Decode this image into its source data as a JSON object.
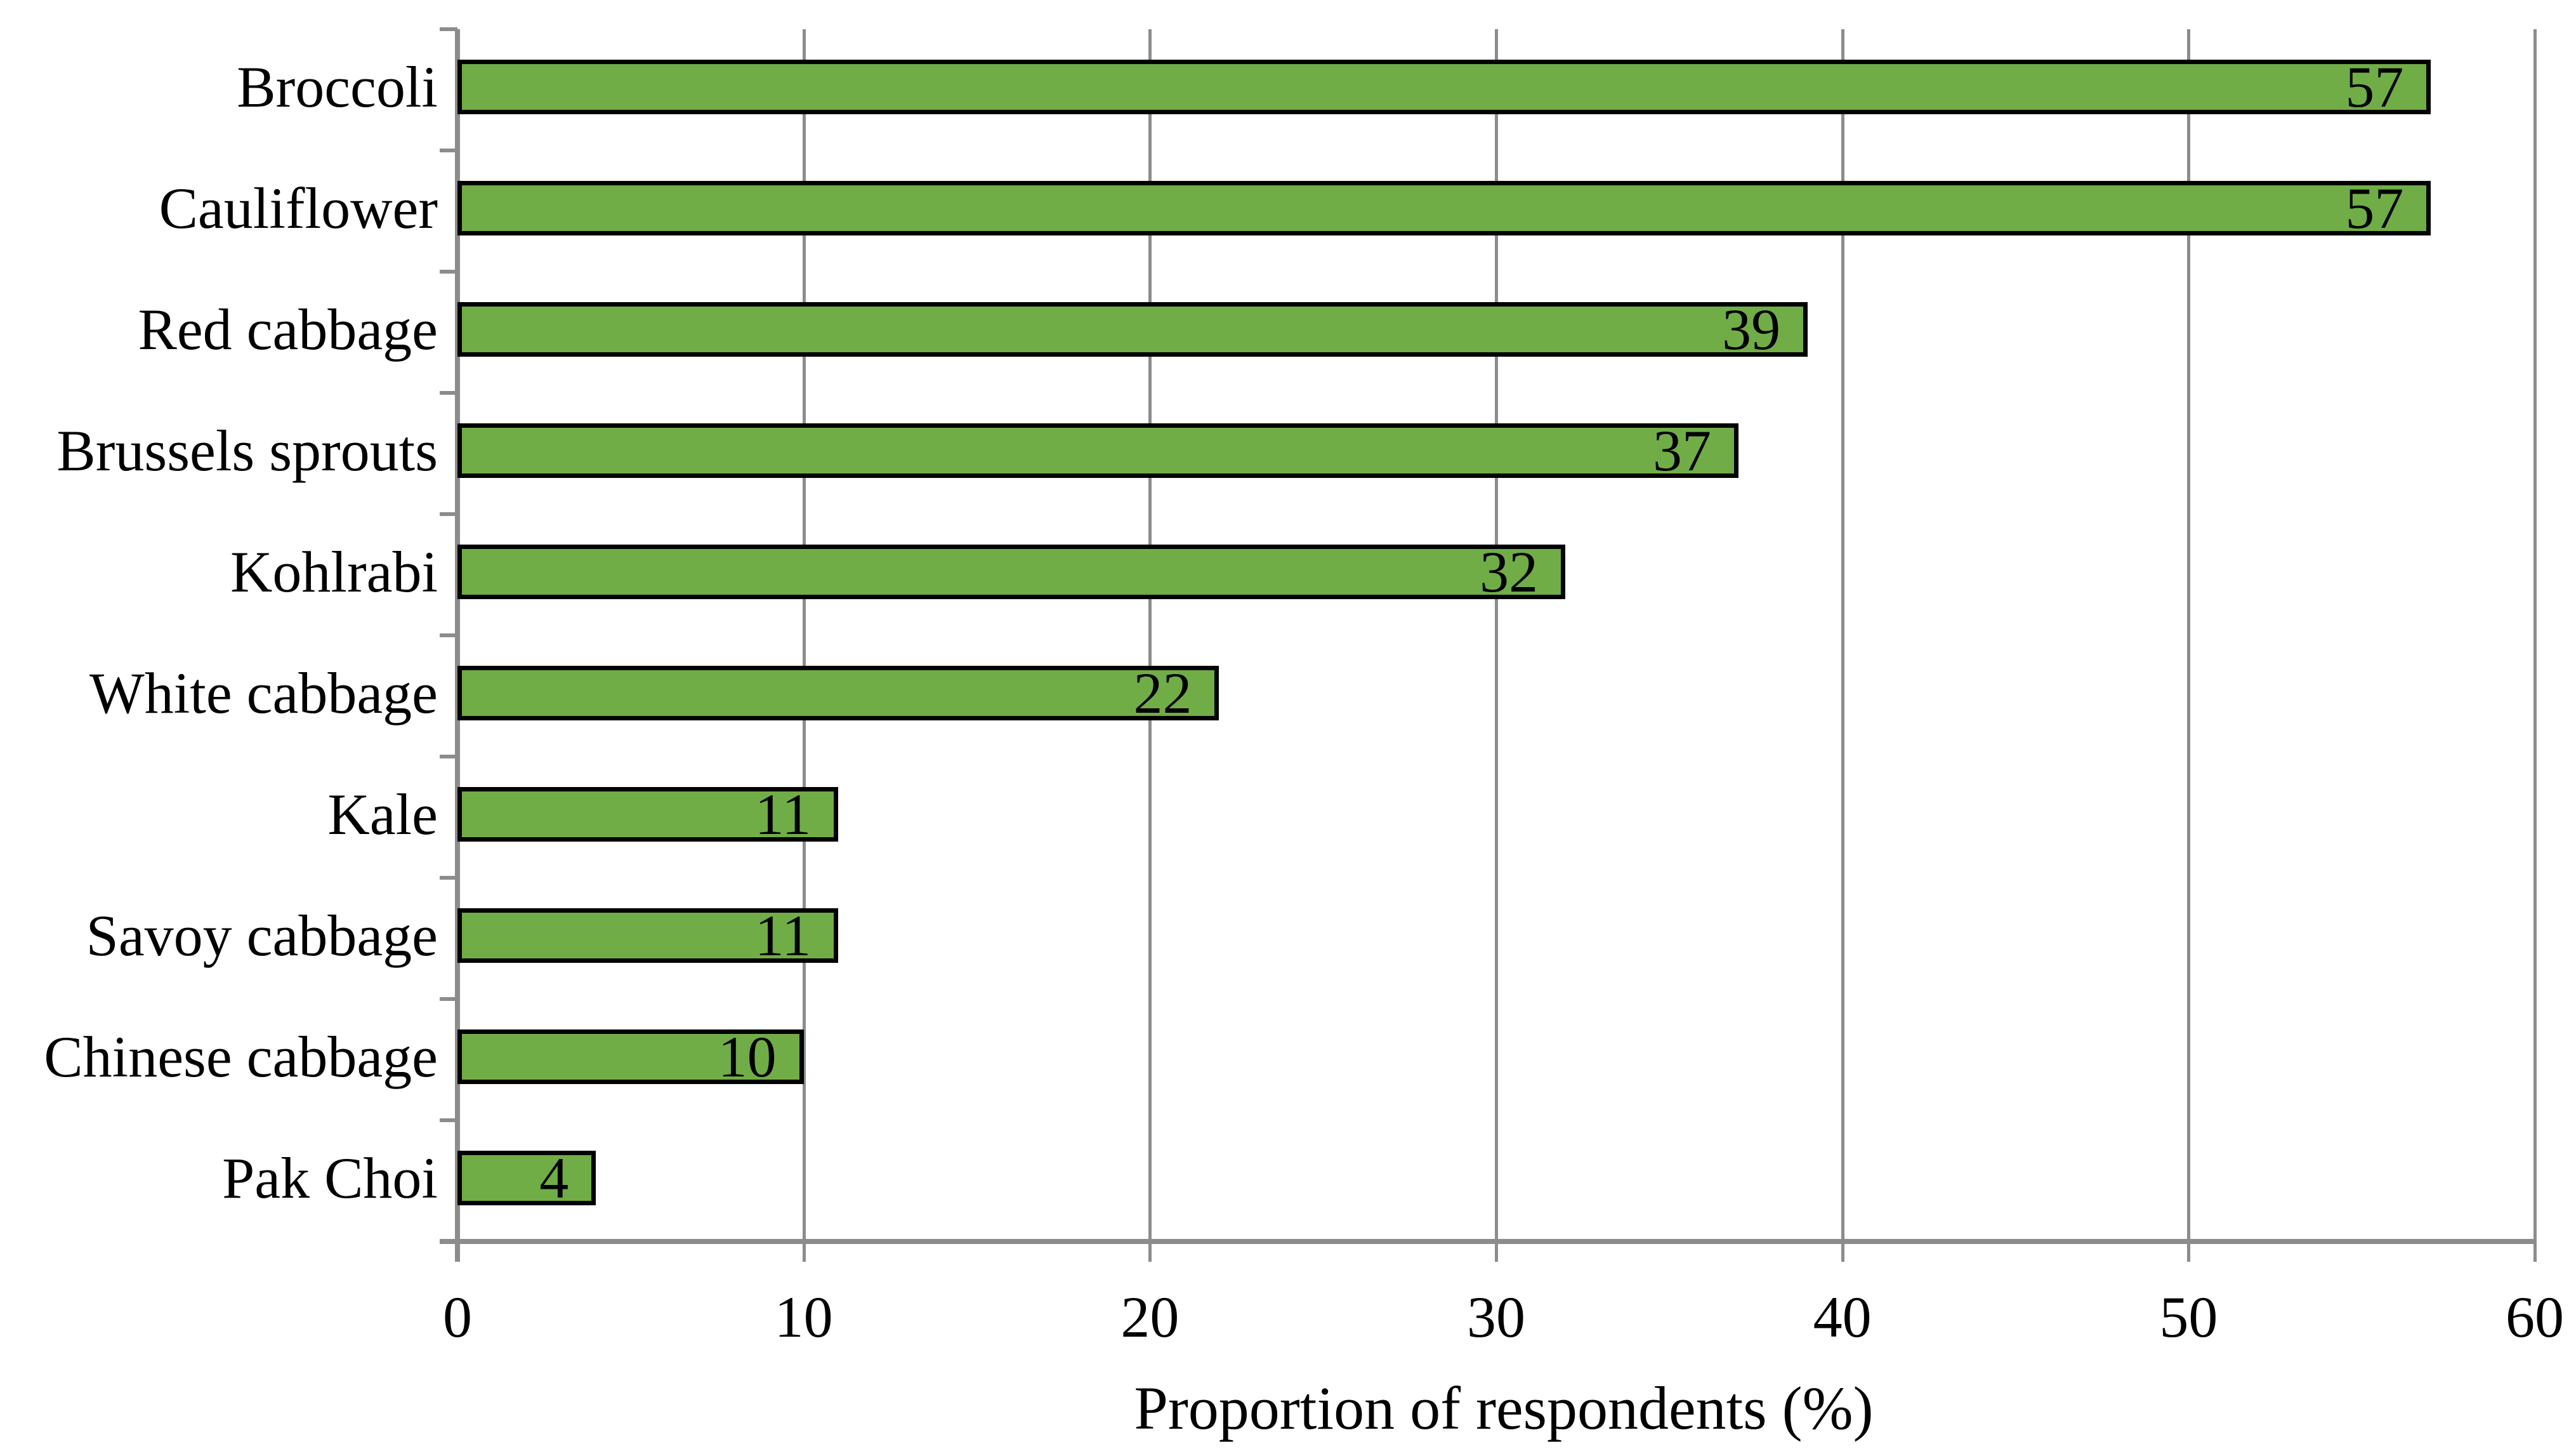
{
  "chart_data": {
    "type": "bar",
    "orientation": "horizontal",
    "categories": [
      "Broccoli",
      "Cauliflower",
      "Red cabbage",
      "Brussels sprouts",
      "Kohlrabi",
      "White cabbage",
      "Kale",
      "Savoy cabbage",
      "Chinese cabbage",
      "Pak Choi"
    ],
    "values": [
      57,
      57,
      39,
      37,
      32,
      22,
      11,
      11,
      10,
      4
    ],
    "title": "",
    "xlabel": "Proportion of respondents (%)",
    "ylabel": "",
    "xlim": [
      0,
      60
    ],
    "xticks": [
      0,
      10,
      20,
      30,
      40,
      50,
      60
    ],
    "grid": true,
    "legend": "none",
    "data_labels_position": "inside-end",
    "colors": {
      "bar_fill": "#70AD47",
      "bar_border": "#000000",
      "axis": "#8C8C8C",
      "gridline": "#8C8C8C",
      "text": "#000000",
      "background": "#FFFFFF"
    }
  }
}
